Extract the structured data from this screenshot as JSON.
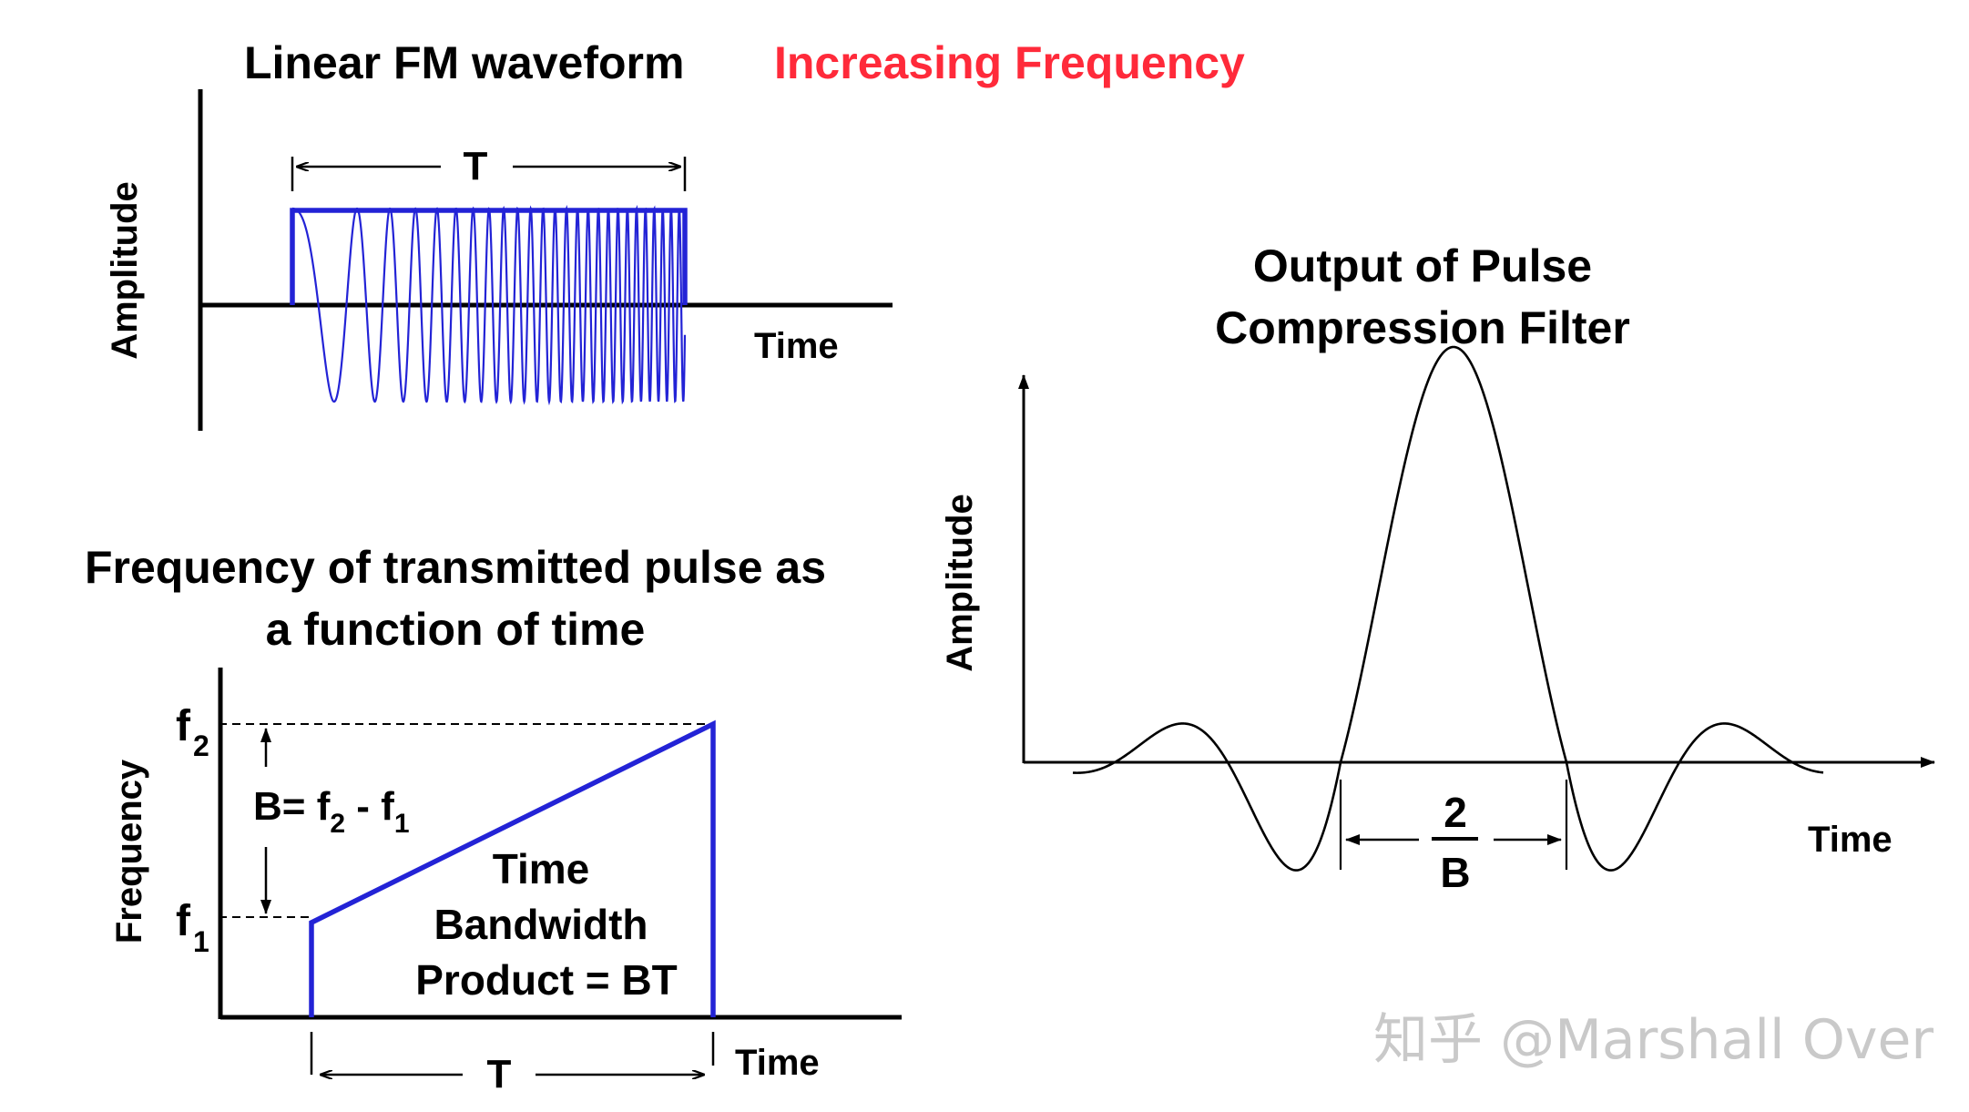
{
  "colors": {
    "pulse": "#2323d6",
    "highlight": "#ff2a3a",
    "ink": "#000000",
    "watermark": "#c9c9c9"
  },
  "top_panel": {
    "title": "Linear FM waveform",
    "title_highlight": "Increasing Frequency",
    "y_label": "Amplitude",
    "x_label": "Time",
    "duration_label": "T"
  },
  "bottom_panel": {
    "title_line1": "Frequency of transmitted pulse as",
    "title_line2": "a function of time",
    "y_label": "Frequency",
    "x_label": "Time",
    "f2_base": "f",
    "f2_sub": "2",
    "f1_base": "f",
    "f1_sub": "1",
    "bandwidth": {
      "prefix": "B= f",
      "sub1": "2",
      "mid": " - f",
      "sub2": "1"
    },
    "product_line1": "Time",
    "product_line2": "Bandwidth",
    "product_line3": "Product = BT",
    "duration_label": "T"
  },
  "right_panel": {
    "title_line1": "Output of Pulse",
    "title_line2": "Compression Filter",
    "y_label": "Amplitude",
    "x_label": "Time",
    "width_numerator": "2",
    "width_denominator": "B"
  },
  "watermark": "知乎 @Marshall Over"
}
